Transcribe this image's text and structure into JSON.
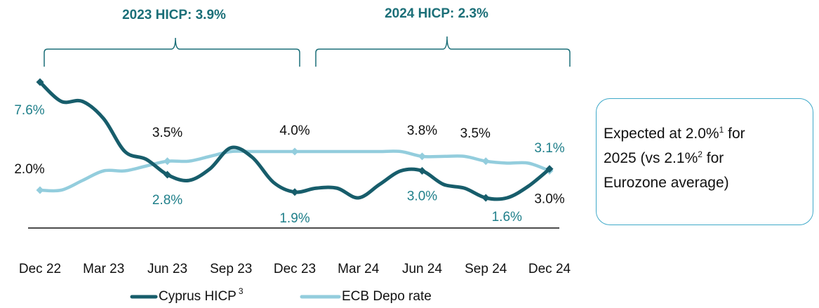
{
  "chart_data": {
    "type": "line",
    "annotations": [
      "2023 HICP: 3.9%",
      "2024 HICP: 2.3%"
    ],
    "categories": [
      "Dec 22",
      null,
      null,
      "Mar 23",
      null,
      null,
      "Jun 23",
      null,
      null,
      "Sep 23",
      null,
      null,
      "Dec 23",
      null,
      null,
      "Mar 24",
      null,
      null,
      "Jun 24",
      null,
      null,
      "Sep 24",
      null,
      null,
      "Dec 24"
    ],
    "series": [
      {
        "name": "Cyprus HICP",
        "footnote": "3",
        "color": "#175d6b",
        "label_color": "#1f7f8a",
        "values": [
          7.6,
          6.6,
          6.6,
          5.7,
          4.0,
          3.6,
          2.8,
          2.5,
          3.1,
          4.2,
          3.7,
          2.4,
          1.9,
          2.1,
          2.1,
          1.6,
          2.3,
          3.0,
          3.0,
          2.3,
          2.1,
          1.6,
          1.6,
          2.2,
          3.1
        ],
        "value_labels": [
          "7.6%",
          null,
          null,
          null,
          null,
          null,
          "2.8%",
          null,
          null,
          null,
          null,
          null,
          "1.9%",
          null,
          null,
          null,
          null,
          null,
          "3.0%",
          null,
          null,
          "1.6%",
          null,
          null,
          "3.1%"
        ]
      },
      {
        "name": "ECB Depo rate",
        "color": "#93cddd",
        "label_color": "#111111",
        "values": [
          2.0,
          2.0,
          2.5,
          3.0,
          3.0,
          3.25,
          3.5,
          3.5,
          3.75,
          4.0,
          4.0,
          4.0,
          4.0,
          4.0,
          4.0,
          4.0,
          4.0,
          4.0,
          3.75,
          3.75,
          3.75,
          3.5,
          3.4,
          3.4,
          3.0
        ],
        "value_labels": [
          "2.0%",
          null,
          null,
          null,
          null,
          null,
          "3.5%",
          null,
          null,
          null,
          null,
          null,
          "4.0%",
          null,
          null,
          null,
          null,
          null,
          "3.8%",
          null,
          null,
          "3.5%",
          null,
          null,
          "3.0%"
        ]
      }
    ],
    "ylim": [
      0,
      8.5
    ],
    "callout": [
      "Expected at 2.0%",
      "1",
      " for",
      "2025 (vs 2.1%",
      "2",
      " for",
      "Eurozone average)"
    ]
  }
}
